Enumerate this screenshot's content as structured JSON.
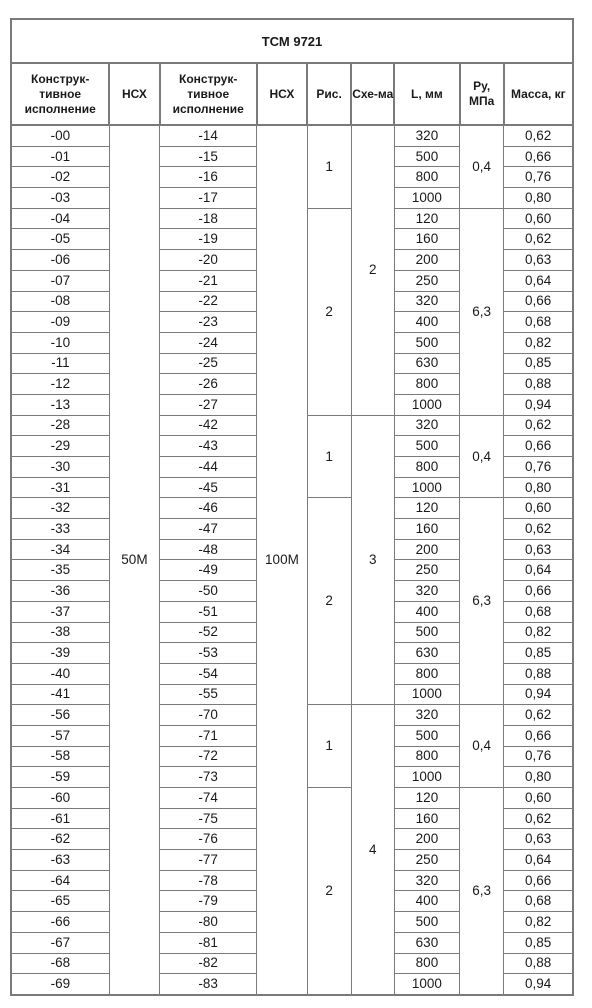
{
  "title": "ТСМ 9721",
  "headers": {
    "exec1": "Конструк-тивное исполнение",
    "nsh1": "НСХ",
    "exec2": "Конструк-тивное исполнение",
    "nsh2": "НСХ",
    "ris": "Рис.",
    "scheme": "Схе-ма",
    "length": "L, мм",
    "pressure": "Ру, МПа",
    "mass": "Масса, кг"
  },
  "nsh_values": {
    "first": "50М",
    "second": "100М"
  },
  "blocks": [
    {
      "scheme": "2",
      "groups": [
        {
          "ris": "1",
          "pressure": "0,4",
          "rows": [
            {
              "exec1": "-00",
              "exec2": "-14",
              "length": "320",
              "mass": "0,62"
            },
            {
              "exec1": "-01",
              "exec2": "-15",
              "length": "500",
              "mass": "0,66"
            },
            {
              "exec1": "-02",
              "exec2": "-16",
              "length": "800",
              "mass": "0,76"
            },
            {
              "exec1": "-03",
              "exec2": "-17",
              "length": "1000",
              "mass": "0,80"
            }
          ]
        },
        {
          "ris": "2",
          "pressure": "6,3",
          "rows": [
            {
              "exec1": "-04",
              "exec2": "-18",
              "length": "120",
              "mass": "0,60"
            },
            {
              "exec1": "-05",
              "exec2": "-19",
              "length": "160",
              "mass": "0,62"
            },
            {
              "exec1": "-06",
              "exec2": "-20",
              "length": "200",
              "mass": "0,63"
            },
            {
              "exec1": "-07",
              "exec2": "-21",
              "length": "250",
              "mass": "0,64"
            },
            {
              "exec1": "-08",
              "exec2": "-22",
              "length": "320",
              "mass": "0,66"
            },
            {
              "exec1": "-09",
              "exec2": "-23",
              "length": "400",
              "mass": "0,68"
            },
            {
              "exec1": "-10",
              "exec2": "-24",
              "length": "500",
              "mass": "0,82"
            },
            {
              "exec1": "-11",
              "exec2": "-25",
              "length": "630",
              "mass": "0,85"
            },
            {
              "exec1": "-12",
              "exec2": "-26",
              "length": "800",
              "mass": "0,88"
            },
            {
              "exec1": "-13",
              "exec2": "-27",
              "length": "1000",
              "mass": "0,94"
            }
          ]
        }
      ]
    },
    {
      "scheme": "3",
      "groups": [
        {
          "ris": "1",
          "pressure": "0,4",
          "rows": [
            {
              "exec1": "-28",
              "exec2": "-42",
              "length": "320",
              "mass": "0,62"
            },
            {
              "exec1": "-29",
              "exec2": "-43",
              "length": "500",
              "mass": "0,66"
            },
            {
              "exec1": "-30",
              "exec2": "-44",
              "length": "800",
              "mass": "0,76"
            },
            {
              "exec1": "-31",
              "exec2": "-45",
              "length": "1000",
              "mass": "0,80"
            }
          ]
        },
        {
          "ris": "2",
          "pressure": "6,3",
          "rows": [
            {
              "exec1": "-32",
              "exec2": "-46",
              "length": "120",
              "mass": "0,60"
            },
            {
              "exec1": "-33",
              "exec2": "-47",
              "length": "160",
              "mass": "0,62"
            },
            {
              "exec1": "-34",
              "exec2": "-48",
              "length": "200",
              "mass": "0,63"
            },
            {
              "exec1": "-35",
              "exec2": "-49",
              "length": "250",
              "mass": "0,64"
            },
            {
              "exec1": "-36",
              "exec2": "-50",
              "length": "320",
              "mass": "0,66"
            },
            {
              "exec1": "-37",
              "exec2": "-51",
              "length": "400",
              "mass": "0,68"
            },
            {
              "exec1": "-38",
              "exec2": "-52",
              "length": "500",
              "mass": "0,82"
            },
            {
              "exec1": "-39",
              "exec2": "-53",
              "length": "630",
              "mass": "0,85"
            },
            {
              "exec1": "-40",
              "exec2": "-54",
              "length": "800",
              "mass": "0,88"
            },
            {
              "exec1": "-41",
              "exec2": "-55",
              "length": "1000",
              "mass": "0,94"
            }
          ]
        }
      ]
    },
    {
      "scheme": "4",
      "groups": [
        {
          "ris": "1",
          "pressure": "0,4",
          "rows": [
            {
              "exec1": "-56",
              "exec2": "-70",
              "length": "320",
              "mass": "0,62"
            },
            {
              "exec1": "-57",
              "exec2": "-71",
              "length": "500",
              "mass": "0,66"
            },
            {
              "exec1": "-58",
              "exec2": "-72",
              "length": "800",
              "mass": "0,76"
            },
            {
              "exec1": "-59",
              "exec2": "-73",
              "length": "1000",
              "mass": "0,80"
            }
          ]
        },
        {
          "ris": "2",
          "pressure": "6,3",
          "rows": [
            {
              "exec1": "-60",
              "exec2": "-74",
              "length": "120",
              "mass": "0,60"
            },
            {
              "exec1": "-61",
              "exec2": "-75",
              "length": "160",
              "mass": "0,62"
            },
            {
              "exec1": "-62",
              "exec2": "-76",
              "length": "200",
              "mass": "0,63"
            },
            {
              "exec1": "-63",
              "exec2": "-77",
              "length": "250",
              "mass": "0,64"
            },
            {
              "exec1": "-64",
              "exec2": "-78",
              "length": "320",
              "mass": "0,66"
            },
            {
              "exec1": "-65",
              "exec2": "-79",
              "length": "400",
              "mass": "0,68"
            },
            {
              "exec1": "-66",
              "exec2": "-80",
              "length": "500",
              "mass": "0,82"
            },
            {
              "exec1": "-67",
              "exec2": "-81",
              "length": "630",
              "mass": "0,85"
            },
            {
              "exec1": "-68",
              "exec2": "-82",
              "length": "800",
              "mass": "0,88"
            },
            {
              "exec1": "-69",
              "exec2": "-83",
              "length": "1000",
              "mass": "0,94"
            }
          ]
        }
      ]
    }
  ]
}
